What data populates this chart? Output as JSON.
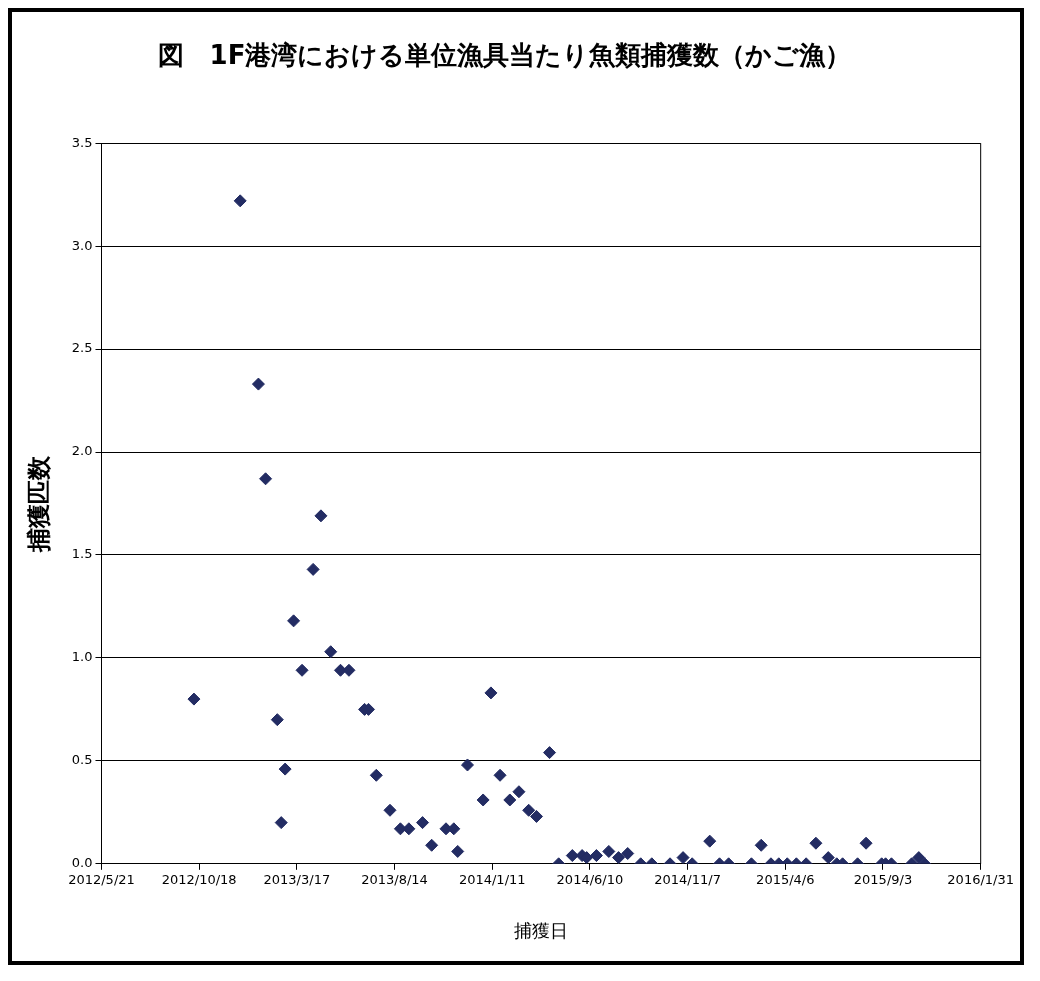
{
  "chart_data": {
    "type": "scatter",
    "title": "図　1F港湾における単位漁具当たり魚類捕獲数（かご漁）",
    "xlabel": "捕獲日",
    "ylabel": "捕獲匹数",
    "x": [
      "2012-10-10",
      "2012-12-20",
      "2013-01-17",
      "2013-01-28",
      "2013-02-15",
      "2013-02-21",
      "2013-02-27",
      "2013-03-12",
      "2013-03-25",
      "2013-04-11",
      "2013-04-23",
      "2013-05-08",
      "2013-05-23",
      "2013-06-05",
      "2013-06-29",
      "2013-07-05",
      "2013-07-17",
      "2013-08-07",
      "2013-08-23",
      "2013-09-05",
      "2013-09-26",
      "2013-10-10",
      "2013-11-01",
      "2013-11-13",
      "2013-11-19",
      "2013-12-04",
      "2013-12-28",
      "2014-01-09",
      "2014-01-23",
      "2014-02-07",
      "2014-02-21",
      "2014-03-08",
      "2014-03-20",
      "2014-04-09",
      "2014-04-23",
      "2014-05-14",
      "2014-05-29",
      "2014-06-05",
      "2014-06-20",
      "2014-07-09",
      "2014-07-24",
      "2014-08-07",
      "2014-08-27",
      "2014-09-13",
      "2014-10-11",
      "2014-10-31",
      "2014-11-14",
      "2014-12-11",
      "2014-12-26",
      "2015-01-09",
      "2015-02-13",
      "2015-02-28",
      "2015-03-15",
      "2015-03-27",
      "2015-04-09",
      "2015-04-23",
      "2015-05-08",
      "2015-05-23",
      "2015-06-11",
      "2015-06-24",
      "2015-07-03",
      "2015-07-26",
      "2015-08-08",
      "2015-09-01",
      "2015-09-07",
      "2015-09-16",
      "2015-10-17",
      "2015-10-28",
      "2015-11-06"
    ],
    "series": [
      {
        "color": "#232c63",
        "values": [
          0.8,
          3.22,
          2.33,
          1.87,
          0.7,
          0.2,
          0.46,
          1.18,
          0.94,
          1.43,
          1.69,
          1.03,
          0.94,
          0.94,
          0.75,
          0.75,
          0.43,
          0.26,
          0.17,
          0.17,
          0.2,
          0.09,
          0.17,
          0.17,
          0.06,
          0.48,
          0.31,
          0.83,
          0.43,
          0.31,
          0.35,
          0.26,
          0.23,
          0.54,
          0,
          0.04,
          0.04,
          0.03,
          0.04,
          0.06,
          0.03,
          0.05,
          0,
          0,
          0,
          0.03,
          0,
          0.11,
          0,
          0,
          0,
          0.09,
          0,
          0,
          0,
          0,
          0,
          0.1,
          0.03,
          0,
          0,
          0,
          0.1,
          0,
          0,
          0,
          0,
          0.03,
          0
        ]
      }
    ],
    "xlim": [
      "2012-05-21",
      "2016-01-31"
    ],
    "xticks": [
      {
        "value": "2012-05-21",
        "label": "2012/5/21"
      },
      {
        "value": "2012-10-18",
        "label": "2012/10/18"
      },
      {
        "value": "2013-03-17",
        "label": "2013/3/17"
      },
      {
        "value": "2013-08-14",
        "label": "2013/8/14"
      },
      {
        "value": "2014-01-11",
        "label": "2014/1/11"
      },
      {
        "value": "2014-06-10",
        "label": "2014/6/10"
      },
      {
        "value": "2014-11-07",
        "label": "2014/11/7"
      },
      {
        "value": "2015-04-06",
        "label": "2015/4/6"
      },
      {
        "value": "2015-09-03",
        "label": "2015/9/3"
      },
      {
        "value": "2016-01-31",
        "label": "2016/1/31"
      }
    ],
    "ylim": [
      0,
      3.5
    ],
    "yticks": [
      {
        "value": 0,
        "label": "0.0"
      },
      {
        "value": 0.5,
        "label": "0.5"
      },
      {
        "value": 1,
        "label": "1.0"
      },
      {
        "value": 1.5,
        "label": "1.5"
      },
      {
        "value": 2,
        "label": "2.0"
      },
      {
        "value": 2.5,
        "label": "2.5"
      },
      {
        "value": 3,
        "label": "3.0"
      },
      {
        "value": 3.5,
        "label": "3.5"
      }
    ],
    "grid": "y",
    "legend": false,
    "marker": "diamond"
  }
}
